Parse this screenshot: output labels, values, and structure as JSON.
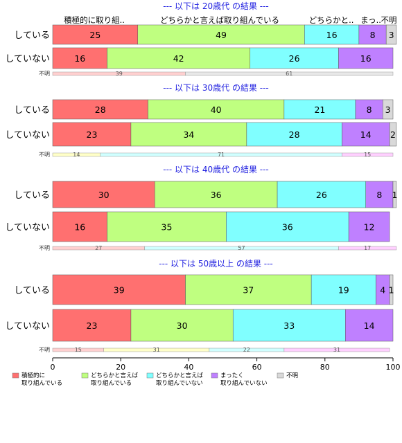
{
  "chart_data": {
    "type": "bar",
    "orientation": "horizontal",
    "stacked": true,
    "xlim": [
      0,
      100
    ],
    "xticks": [
      0,
      20,
      40,
      60,
      80,
      100
    ],
    "category_headers": [
      "積極的に取り組..",
      "どちらかと言えば取り組んでいる",
      "どちらかと..",
      "まっ..",
      "不明"
    ],
    "legend": [
      {
        "label_line1": "積極的に",
        "label_line2": "取り組んでいる",
        "color": "#ff7070"
      },
      {
        "label_line1": "どちらかと言えば",
        "label_line2": "取り組んでいる",
        "color": "#bfff80"
      },
      {
        "label_line1": "どちらかと言えば",
        "label_line2": "取り組んでいない",
        "color": "#80ffff"
      },
      {
        "label_line1": "まったく",
        "label_line2": "取り組んでいない",
        "color": "#bf80ff"
      },
      {
        "label_line1": "不明",
        "label_line2": "",
        "color": "#d9d9d9"
      }
    ],
    "panels": [
      {
        "title": "--- 以下は 20歳代 の結果 ---",
        "rows": [
          {
            "label": "している",
            "values": [
              25,
              49,
              16,
              8,
              3
            ]
          },
          {
            "label": "していない",
            "values": [
              16,
              42,
              26,
              16,
              0
            ]
          }
        ],
        "unknown_row": {
          "label": "不明",
          "values": [
            39,
            0,
            0,
            0,
            61
          ]
        }
      },
      {
        "title": "--- 以下は 30歳代 の結果 ---",
        "rows": [
          {
            "label": "している",
            "values": [
              28,
              40,
              21,
              8,
              3
            ]
          },
          {
            "label": "していない",
            "values": [
              23,
              34,
              28,
              14,
              2
            ]
          }
        ],
        "unknown_row": {
          "label": "不明",
          "values": [
            0,
            14,
            71,
            15,
            0
          ]
        }
      },
      {
        "title": "--- 以下は 40歳代 の結果 ---",
        "rows": [
          {
            "label": "している",
            "values": [
              30,
              36,
              26,
              8,
              1
            ]
          },
          {
            "label": "していない",
            "values": [
              16,
              35,
              36,
              12,
              0
            ]
          }
        ],
        "unknown_row": {
          "label": "不明",
          "values": [
            27,
            0,
            57,
            17,
            0
          ]
        }
      },
      {
        "title": "--- 以下は 50歳以上 の結果 ---",
        "rows": [
          {
            "label": "している",
            "values": [
              39,
              37,
              19,
              4,
              1
            ]
          },
          {
            "label": "していない",
            "values": [
              23,
              30,
              33,
              14,
              0
            ]
          }
        ],
        "unknown_row": {
          "label": "不明",
          "values": [
            15,
            31,
            22,
            31,
            0
          ]
        }
      }
    ]
  }
}
